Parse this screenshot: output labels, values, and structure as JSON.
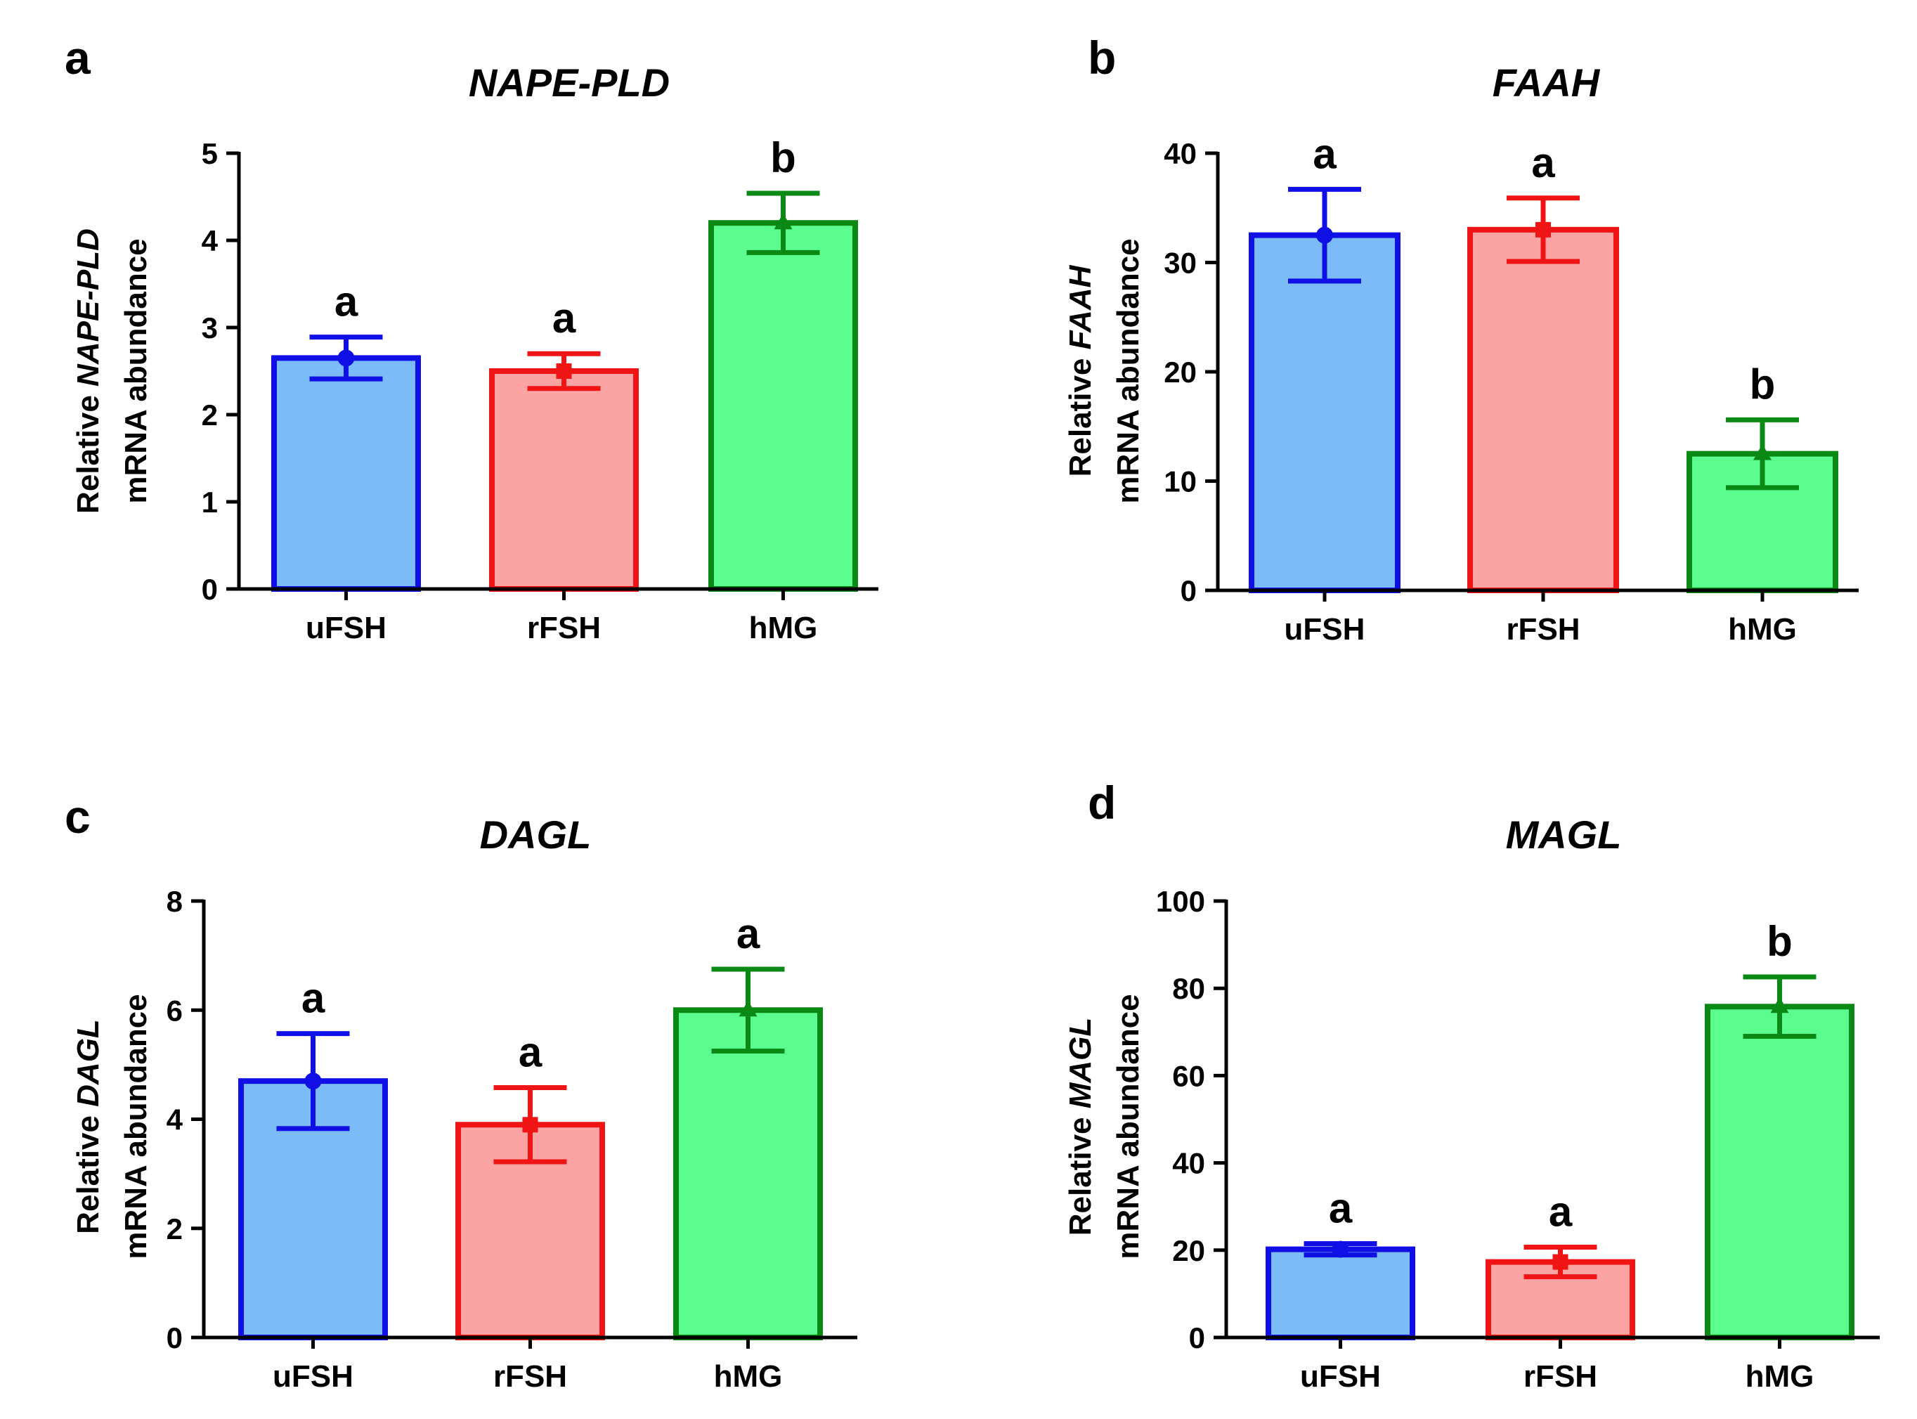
{
  "figure": {
    "colors": {
      "uFSH": {
        "stroke": "#1010e6",
        "fill": "#7bbcf8"
      },
      "rFSH": {
        "stroke": "#f01414",
        "fill": "#fca3a3"
      },
      "hMG": {
        "stroke": "#0a8a14",
        "fill": "#5bfd8f"
      },
      "axis": "#000000"
    }
  },
  "chart_data": [
    {
      "type": "bar",
      "panel": "a",
      "title": "NAPE-PLD",
      "ylabel_prefix": "Relative ",
      "ylabel_gene": "NAPE-PLD",
      "ylabel_line2": "mRNA abundance",
      "xlabel": "",
      "categories": [
        "uFSH",
        "rFSH",
        "hMG"
      ],
      "values": [
        2.65,
        2.5,
        4.2
      ],
      "errors": [
        0.24,
        0.2,
        0.34
      ],
      "significance": [
        "a",
        "a",
        "b"
      ],
      "ylim": [
        0,
        5
      ],
      "yticks": [
        0,
        1,
        2,
        3,
        4,
        5
      ],
      "ytick_labels": [
        "0",
        "1",
        "2",
        "3",
        "4",
        "5"
      ],
      "grid": false
    },
    {
      "type": "bar",
      "panel": "b",
      "title": "FAAH",
      "ylabel_prefix": "Relative ",
      "ylabel_gene": "FAAH",
      "ylabel_line2": "mRNA abundance",
      "xlabel": "",
      "categories": [
        "uFSH",
        "rFSH",
        "hMG"
      ],
      "values": [
        32.5,
        33.0,
        12.5
      ],
      "errors": [
        4.2,
        2.9,
        3.1
      ],
      "significance": [
        "a",
        "a",
        "b"
      ],
      "ylim": [
        0,
        40
      ],
      "yticks": [
        0,
        10,
        20,
        30,
        40
      ],
      "ytick_labels": [
        "0",
        "10",
        "20",
        "30",
        "40"
      ],
      "grid": false
    },
    {
      "type": "bar",
      "panel": "c",
      "title": "DAGL",
      "ylabel_prefix": "Relative ",
      "ylabel_gene": "DAGL",
      "ylabel_line2": "mRNA abundance",
      "xlabel": "",
      "categories": [
        "uFSH",
        "rFSH",
        "hMG"
      ],
      "values": [
        4.7,
        3.9,
        6.0
      ],
      "errors": [
        0.87,
        0.68,
        0.75
      ],
      "significance": [
        "a",
        "a",
        "a"
      ],
      "ylim": [
        0,
        8
      ],
      "yticks": [
        0,
        2,
        4,
        6,
        8
      ],
      "ytick_labels": [
        "0",
        "2",
        "4",
        "6",
        "8"
      ],
      "grid": false
    },
    {
      "type": "bar",
      "panel": "d",
      "title": "MAGL",
      "ylabel_prefix": "Relative ",
      "ylabel_gene": "MAGL",
      "ylabel_line2": "mRNA abundance",
      "xlabel": "",
      "categories": [
        "uFSH",
        "rFSH",
        "hMG"
      ],
      "values": [
        20.2,
        17.3,
        75.8
      ],
      "errors": [
        1.3,
        3.4,
        6.8
      ],
      "significance": [
        "a",
        "a",
        "b"
      ],
      "ylim": [
        0,
        100
      ],
      "yticks": [
        0,
        20,
        40,
        60,
        80,
        100
      ],
      "ytick_labels": [
        "0",
        "20",
        "40",
        "60",
        "80",
        "100"
      ],
      "grid": false
    }
  ]
}
